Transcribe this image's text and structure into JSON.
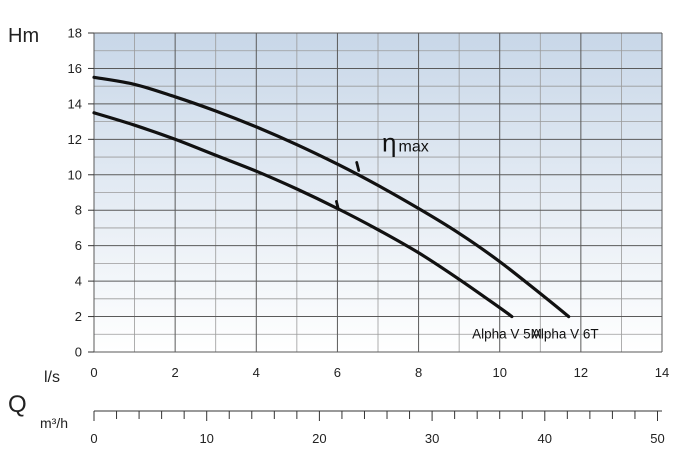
{
  "chart_data": {
    "type": "line",
    "title": "",
    "y_axis": {
      "label": "Hm",
      "min": 0,
      "max": 18,
      "ticks": [
        0,
        2,
        4,
        6,
        8,
        10,
        12,
        14,
        16,
        18
      ]
    },
    "x_axis": {
      "label": "l/s",
      "min": 0,
      "max": 14,
      "ticks": [
        0,
        2,
        4,
        6,
        8,
        10,
        12,
        14
      ]
    },
    "secondary_x_axis": {
      "quantity_label": "Q",
      "unit_label": "m³/h",
      "min": 0,
      "max": 50.4,
      "ticks": [
        0,
        10,
        20,
        30,
        40,
        50
      ],
      "minor_step": 2
    },
    "grid": true,
    "series": [
      {
        "name": "Alpha V 6T",
        "x": [
          0,
          1,
          2,
          3,
          4,
          5,
          6,
          7,
          8,
          9,
          10,
          11,
          11.7
        ],
        "y": [
          15.5,
          15.1,
          14.4,
          13.6,
          12.7,
          11.7,
          10.6,
          9.4,
          8.1,
          6.7,
          5.1,
          3.3,
          2.0
        ]
      },
      {
        "name": "Alpha V 5M",
        "x": [
          0,
          1,
          2,
          3,
          4,
          5,
          6,
          7,
          8,
          9,
          10,
          10.3
        ],
        "y": [
          13.5,
          12.8,
          12.0,
          11.1,
          10.2,
          9.2,
          8.1,
          6.9,
          5.6,
          4.1,
          2.5,
          2.0
        ]
      }
    ],
    "annotations": [
      {
        "text": "ηmax",
        "symbol": "η",
        "suffix": "max",
        "x": 7.1,
        "y": 11.3
      },
      {
        "mark": "eta_max_point",
        "series": "Alpha V 6T",
        "x": 6.5,
        "y": 10.3
      },
      {
        "mark": "eta_max_point",
        "series": "Alpha V 5M",
        "x": 6.0,
        "y": 8.1
      }
    ],
    "background": "blue-to-white vertical gradient"
  },
  "colors": {
    "plot_top": "#c8d7e8",
    "plot_bottom": "#ffffff",
    "grid_major": "#5a5a5a",
    "grid_minor": "#9a9a9a",
    "curve": "#111111"
  }
}
